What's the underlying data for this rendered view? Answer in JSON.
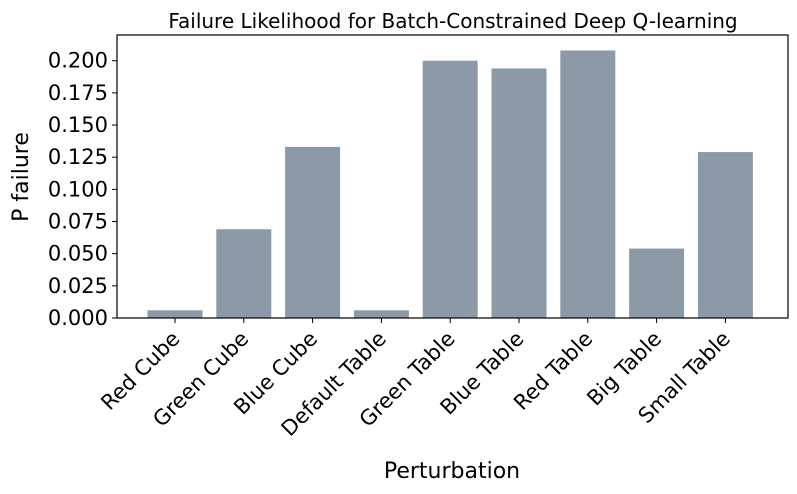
{
  "chart_data": {
    "type": "bar",
    "title": "Failure Likelihood for Batch-Constrained Deep Q-learning",
    "xlabel": "Perturbation",
    "ylabel": "P failure",
    "categories": [
      "Red Cube",
      "Green Cube",
      "Blue Cube",
      "Default Table",
      "Green Table",
      "Blue Table",
      "Red Table",
      "Big Table",
      "Small Table"
    ],
    "values": [
      0.006,
      0.069,
      0.133,
      0.006,
      0.2,
      0.194,
      0.208,
      0.054,
      0.129
    ],
    "ylim": [
      0,
      0.22
    ],
    "yticks": [
      "0.000",
      "0.025",
      "0.050",
      "0.075",
      "0.100",
      "0.125",
      "0.150",
      "0.175",
      "0.200"
    ],
    "bar_color": "#8c9aa8",
    "grid": false,
    "legend": "none"
  }
}
